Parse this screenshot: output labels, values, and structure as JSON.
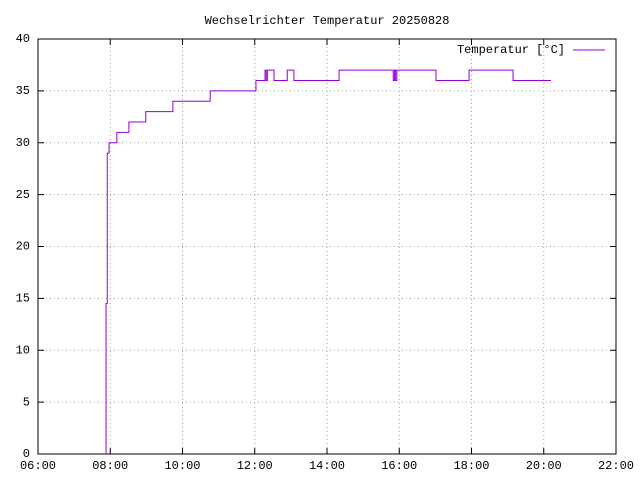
{
  "chart_data": {
    "type": "line",
    "title": "Wechselrichter Temperatur 20250828",
    "x": [
      "07:53",
      "07:53",
      "07:55",
      "07:55",
      "07:58",
      "07:58",
      "08:11",
      "08:11",
      "08:31",
      "08:31",
      "08:59",
      "08:59",
      "09:44",
      "09:44",
      "10:46",
      "10:46",
      "12:02",
      "12:02",
      "12:17",
      "12:17",
      "12:19",
      "12:19",
      "12:21",
      "12:21",
      "12:32",
      "12:32",
      "12:54",
      "12:54",
      "13:05",
      "13:05",
      "14:20",
      "14:20",
      "15:50",
      "15:50",
      "15:52",
      "15:52",
      "15:54",
      "15:54",
      "15:56",
      "15:56",
      "17:01",
      "17:01",
      "17:56",
      "17:56",
      "19:09",
      "19:09",
      "20:12"
    ],
    "series": [
      {
        "name": "Temperatur [°C]",
        "color": "#9400d3",
        "values": [
          0,
          14.5,
          14.5,
          29,
          29,
          30,
          30,
          31,
          31,
          32,
          32,
          33,
          33,
          34,
          34,
          35,
          35,
          36,
          36,
          37,
          37,
          36,
          36,
          37,
          37,
          36,
          36,
          37,
          37,
          36,
          36,
          37,
          37,
          36,
          36,
          37,
          37,
          36,
          36,
          37,
          37,
          36,
          36,
          37,
          37,
          36,
          36
        ]
      }
    ],
    "xlim": [
      "06:00",
      "22:00"
    ],
    "xticks": [
      "06:00",
      "08:00",
      "10:00",
      "12:00",
      "14:00",
      "16:00",
      "18:00",
      "20:00",
      "22:00"
    ],
    "ylim": [
      0,
      40
    ],
    "yticks": [
      0,
      5,
      10,
      15,
      20,
      25,
      30,
      35,
      40
    ],
    "grid": true,
    "legend": "top-right"
  }
}
